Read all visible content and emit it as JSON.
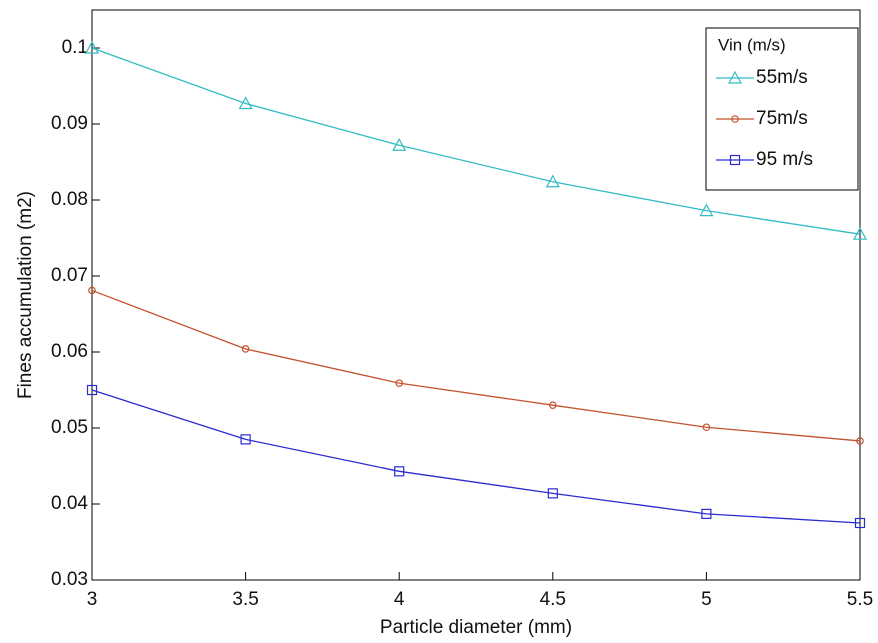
{
  "chart_data": {
    "type": "line",
    "x_label": "Particle diameter (mm)",
    "y_label": "Fines accumulation (m2)",
    "x": [
      3,
      3.5,
      4,
      4.5,
      5,
      5.5
    ],
    "series": [
      {
        "name": "55m/s",
        "color": "#33bcc4",
        "marker": "triangle",
        "values": [
          0.1,
          0.0927,
          0.0872,
          0.0824,
          0.0786,
          0.0755
        ]
      },
      {
        "name": "75m/s",
        "color": "#c4532f",
        "marker": "circle",
        "values": [
          0.0681,
          0.0604,
          0.0559,
          0.053,
          0.0501,
          0.0483
        ]
      },
      {
        "name": "95 m/s",
        "color": "#2b2bd0",
        "marker": "square",
        "values": [
          0.055,
          0.0485,
          0.0443,
          0.0414,
          0.0387,
          0.0375
        ]
      }
    ],
    "legend_title": "Vin (m/s)",
    "legend": "upper right",
    "xlim": [
      3,
      5.5
    ],
    "xticks": [
      3,
      3.5,
      4,
      4.5,
      5,
      5.5
    ],
    "ylim": [
      0.03,
      0.105
    ],
    "yticks": [
      0.03,
      0.04,
      0.05,
      0.06,
      0.07,
      0.08,
      0.09,
      0.1
    ],
    "grid": false
  }
}
